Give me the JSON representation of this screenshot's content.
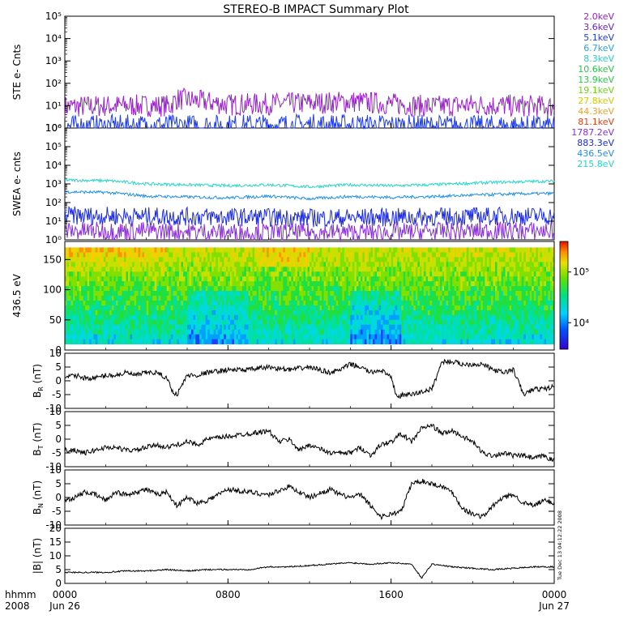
{
  "title": "STEREO-B IMPACT Summary Plot",
  "timestamp_note": "Tue Dec 13 04:12:22 2008",
  "time_axis": {
    "row_label": "hhmm",
    "year_label": "2008",
    "ticks": [
      {
        "hour": 0,
        "label": "0000",
        "date": "Jun 26"
      },
      {
        "hour": 8,
        "label": "0800",
        "date": ""
      },
      {
        "hour": 16,
        "label": "1600",
        "date": ""
      },
      {
        "hour": 24,
        "label": "0000",
        "date": "Jun 27"
      }
    ],
    "range_hours": [
      0,
      24
    ]
  },
  "colors": {
    "line": "#000000",
    "ste_channels": [
      "#9a22cc",
      "#6a1fd6",
      "#1e3df0",
      "#1ea6f0",
      "#20d0d0",
      "#22cc44",
      "#66dd00",
      "#d8c800",
      "#f0a020",
      "#e04010"
    ],
    "swea_channels": [
      "#8a2be2",
      "#1a2ae8",
      "#1e8ef0",
      "#20d8c8"
    ]
  },
  "colorbar": {
    "ticks": [
      {
        "value": 100000,
        "label": "10⁵"
      },
      {
        "value": 10000,
        "label": "10⁴"
      }
    ],
    "range": [
      3000,
      400000
    ],
    "scale": "log"
  },
  "chart_data": [
    {
      "type": "line",
      "ylabel": "STE e- Cnts",
      "yscale": "log",
      "ylim": [
        1,
        100000
      ],
      "yticks": [
        "10⁰",
        "10¹",
        "10²",
        "10³",
        "10⁴",
        "10⁵"
      ],
      "legend": [
        "2.0keV",
        "3.6keV",
        "5.1keV",
        "6.7keV",
        "8.3keV",
        "10.6keV",
        "13.9keV",
        "19.1keV",
        "27.8keV",
        "44.3keV",
        "81.1keV"
      ],
      "series": [
        {
          "name": "2.0keV",
          "x": [
            0,
            3,
            5.2,
            5.5,
            8,
            12,
            14,
            16,
            18,
            20,
            22,
            24
          ],
          "y": [
            9,
            10,
            10,
            20,
            11,
            13,
            15,
            12,
            9,
            11,
            10,
            9
          ]
        },
        {
          "name": "3.6keV",
          "x": [
            0,
            4,
            8,
            12,
            16,
            20,
            24
          ],
          "y": [
            1.2,
            1.3,
            1.3,
            1.4,
            1.3,
            1.2,
            1.2
          ]
        }
      ]
    },
    {
      "type": "line",
      "ylabel": "SWEA e- cnts",
      "yscale": "log",
      "ylim": [
        1,
        1000000
      ],
      "yticks": [
        "10⁰",
        "10¹",
        "10²",
        "10³",
        "10⁴",
        "10⁵",
        "10⁶"
      ],
      "legend": [
        "1787.2eV",
        "883.3eV",
        "436.5eV",
        "215.8eV"
      ],
      "series": [
        {
          "name": "215.8eV",
          "x": [
            0,
            2,
            4,
            6,
            8,
            10,
            12,
            14,
            16,
            18,
            20,
            22,
            24
          ],
          "y": [
            1600,
            1500,
            1000,
            900,
            800,
            900,
            700,
            900,
            800,
            900,
            1100,
            1300,
            1400
          ]
        },
        {
          "name": "436.5eV",
          "x": [
            0,
            2,
            4,
            6,
            8,
            10,
            12,
            14,
            16,
            18,
            20,
            22,
            24
          ],
          "y": [
            380,
            350,
            220,
            200,
            180,
            220,
            160,
            210,
            190,
            210,
            250,
            290,
            310
          ]
        },
        {
          "name": "883.3eV",
          "x": [
            0,
            4,
            8,
            12,
            16,
            20,
            24
          ],
          "y": [
            20,
            18,
            17,
            15,
            16,
            18,
            19
          ]
        },
        {
          "name": "1787.2eV",
          "x": [
            0,
            4,
            8,
            12,
            16,
            20,
            24
          ],
          "y": [
            3,
            3,
            2.5,
            2.5,
            2.5,
            3,
            3
          ]
        }
      ]
    },
    {
      "type": "heatmap",
      "ylabel": "436.5 eV",
      "ylim": [
        0,
        180
      ],
      "yticks": [
        0,
        50,
        100,
        150
      ],
      "rows_ylim": [
        10,
        170
      ]
    },
    {
      "type": "line",
      "ylabel": "B_R (nT)",
      "ylabel_main": "B",
      "ylabel_sub": "R",
      "ylabel_unit": "(nT)",
      "ylim": [
        -10,
        10
      ],
      "yticks": [
        -10,
        -5,
        0,
        5,
        10
      ],
      "x": [
        0,
        0.5,
        1,
        1.5,
        2,
        2.5,
        3,
        3.5,
        4,
        4.5,
        5,
        5.3,
        5.5,
        6,
        6.5,
        7,
        8,
        9,
        10,
        11,
        12,
        13,
        13.5,
        14,
        14.5,
        15,
        15.5,
        16,
        16.3,
        16.6,
        17,
        17.5,
        18,
        18.5,
        19,
        19.5,
        20,
        20.5,
        21,
        21.5,
        22,
        22.5,
        23,
        23.5,
        24
      ],
      "y": [
        1,
        2,
        1,
        1,
        2,
        2,
        3,
        2,
        3,
        3,
        1,
        -4,
        -5,
        2,
        2,
        3,
        4,
        4,
        5,
        4,
        5,
        3,
        4,
        6,
        5,
        3,
        4,
        1,
        -6,
        -5,
        -5,
        -4,
        -3,
        7,
        7,
        6,
        6,
        6,
        4,
        3,
        4,
        -5,
        -3,
        -3,
        -2
      ]
    },
    {
      "type": "line",
      "ylabel": "B_T (nT)",
      "ylabel_main": "B",
      "ylabel_sub": "T",
      "ylabel_unit": "(nT)",
      "ylim": [
        -10,
        10
      ],
      "yticks": [
        -10,
        -5,
        0,
        5,
        10
      ],
      "x": [
        0,
        0.5,
        1,
        1.5,
        2,
        2.5,
        3,
        3.5,
        4,
        4.5,
        5,
        5.5,
        6,
        6.5,
        7,
        8,
        9,
        10,
        10.5,
        11,
        11.5,
        12,
        13,
        14,
        14.5,
        15,
        15.5,
        16,
        16.5,
        17,
        17.5,
        18,
        18.5,
        19,
        19.5,
        20,
        20.5,
        21,
        21.5,
        22,
        22.5,
        23,
        23.5,
        24
      ],
      "y": [
        -4,
        -4,
        -5,
        -4,
        -3,
        -3,
        -4,
        -4,
        -3,
        -2,
        -3,
        -2,
        -1,
        -2,
        0,
        1,
        2,
        3,
        -1,
        0,
        -4,
        -2,
        -5,
        -5,
        -3,
        -6,
        -2,
        -1,
        2,
        -1,
        4,
        5,
        2,
        3,
        1,
        -1,
        -5,
        -6,
        -5,
        -6,
        -6,
        -7,
        -6,
        -8
      ]
    },
    {
      "type": "line",
      "ylabel": "B_N (nT)",
      "ylabel_main": "B",
      "ylabel_sub": "N",
      "ylabel_unit": "(nT)",
      "ylim": [
        -10,
        10
      ],
      "yticks": [
        -10,
        -5,
        0,
        5,
        10
      ],
      "x": [
        0,
        0.5,
        1,
        1.5,
        2,
        2.5,
        3,
        3.5,
        4,
        4.5,
        5,
        5.5,
        6,
        6.5,
        7,
        8,
        9,
        10,
        11,
        12,
        13,
        13.5,
        14,
        14.5,
        15,
        15.5,
        16,
        16.5,
        17,
        17.5,
        18,
        18.5,
        19,
        19.5,
        20,
        20.5,
        21,
        21.5,
        22,
        22.5,
        23,
        23.5,
        24
      ],
      "y": [
        -1,
        0,
        2,
        1,
        -1,
        2,
        1,
        2,
        3,
        1,
        2,
        -3,
        0,
        -2,
        -1,
        3,
        2,
        1,
        4,
        0,
        3,
        1,
        0,
        1,
        -3,
        -7,
        -6,
        -5,
        5,
        6,
        5,
        4,
        2,
        -4,
        -6,
        -7,
        -3,
        0,
        1,
        -2,
        -3,
        -1,
        -2
      ]
    },
    {
      "type": "line",
      "ylabel": "|B| (nT)",
      "ylabel_main": "|B|",
      "ylabel_sub": "",
      "ylabel_unit": "(nT)",
      "ylim": [
        0,
        20
      ],
      "yticks": [
        0,
        5,
        10,
        15,
        20
      ],
      "x": [
        0,
        1,
        2,
        3,
        4,
        5,
        6,
        7,
        8,
        9,
        10,
        11,
        12,
        13,
        14,
        15,
        16,
        17,
        17.5,
        18,
        18.5,
        19,
        20,
        21,
        22,
        23,
        24
      ],
      "y": [
        4,
        4,
        4,
        4.5,
        4.5,
        5,
        4.5,
        5,
        5,
        5,
        6,
        6,
        6.5,
        7,
        7.5,
        7,
        7.5,
        7,
        2,
        7,
        6.5,
        6,
        5.5,
        5,
        5.5,
        6,
        6
      ]
    }
  ]
}
